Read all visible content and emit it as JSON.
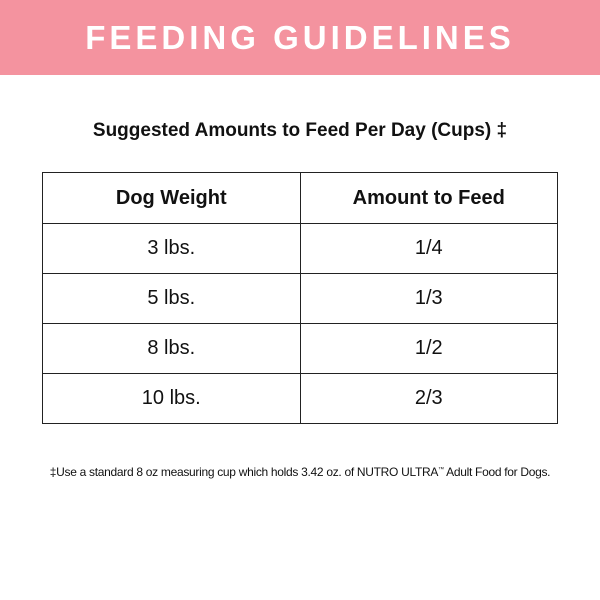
{
  "header": {
    "title": "FEEDING GUIDELINES"
  },
  "subtitle": "Suggested Amounts to Feed Per Day (Cups) ‡",
  "table": {
    "columns": [
      "Dog Weight",
      "Amount to Feed"
    ],
    "rows": [
      [
        "3 lbs.",
        "1/4"
      ],
      [
        "5 lbs.",
        "1/3"
      ],
      [
        "8 lbs.",
        "1/2"
      ],
      [
        "10 lbs.",
        "2/3"
      ]
    ]
  },
  "footnote": {
    "text": "‡Use a standard 8 oz measuring cup which holds 3.42 oz. of NUTRO ULTRA",
    "mark": "™",
    "tail": " Adult Food for Dogs."
  }
}
